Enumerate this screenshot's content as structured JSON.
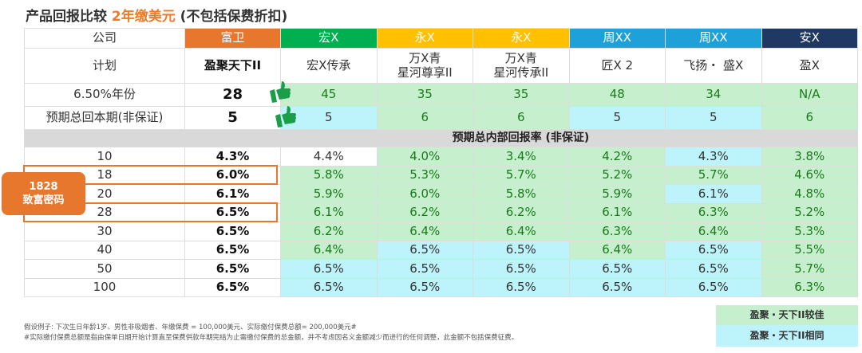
{
  "title": {
    "prefix": "产品回报比较 ",
    "highlight": "2年缴美元",
    "suffix": " (不包括保费折扣)"
  },
  "colors": {
    "orange": "#e8772e",
    "better": "#c6efce",
    "same": "#bdf3fb"
  },
  "companies": {
    "label": "公司",
    "items": [
      {
        "name": "富卫",
        "color": "#e8772e"
      },
      {
        "name": "宏X",
        "color": "#00b050"
      },
      {
        "name": "永X",
        "color": "#ffc000"
      },
      {
        "name": "永X",
        "color": "#ffc000"
      },
      {
        "name": "周XX",
        "color": "#1ea0d8"
      },
      {
        "name": "周XX",
        "color": "#1ea0d8"
      },
      {
        "name": "安X",
        "color": "#203864"
      }
    ]
  },
  "plans": {
    "label": "计划",
    "items": [
      "盈聚天下II",
      "宏X传承",
      "万X青\n星河尊享II",
      "万X青\n星河传承II",
      "匠X 2",
      "飞扬・ 盛X",
      "盈X"
    ]
  },
  "year_row": {
    "label": "6.50%年份",
    "values": [
      "28",
      "45",
      "35",
      "35",
      "48",
      "34",
      "N/A"
    ],
    "status": [
      "",
      "g",
      "g",
      "g",
      "g",
      "g",
      "g"
    ]
  },
  "payback_row": {
    "label": "预期总回本期(非保证)",
    "values": [
      "5",
      "5",
      "6",
      "6",
      "5",
      "5",
      "6"
    ],
    "status": [
      "",
      "b",
      "g",
      "g",
      "b",
      "b",
      "g"
    ]
  },
  "section": "预期总内部回报率 (非保证)",
  "irr_rows": [
    {
      "year": "10",
      "values": [
        "4.3%",
        "4.4%",
        "4.0%",
        "3.4%",
        "4.2%",
        "4.3%",
        "3.8%"
      ],
      "status": [
        "",
        "w",
        "g",
        "g",
        "g",
        "b",
        "g"
      ]
    },
    {
      "year": "18",
      "values": [
        "6.0%",
        "5.8%",
        "5.3%",
        "5.7%",
        "5.2%",
        "5.7%",
        "4.6%"
      ],
      "status": [
        "",
        "g",
        "g",
        "g",
        "g",
        "g",
        "g"
      ]
    },
    {
      "year": "20",
      "values": [
        "6.1%",
        "5.9%",
        "6.0%",
        "5.8%",
        "5.9%",
        "6.1%",
        "4.8%"
      ],
      "status": [
        "",
        "g",
        "g",
        "g",
        "g",
        "b",
        "g"
      ]
    },
    {
      "year": "28",
      "values": [
        "6.5%",
        "6.1%",
        "6.2%",
        "6.2%",
        "6.1%",
        "6.3%",
        "5.2%"
      ],
      "status": [
        "",
        "g",
        "g",
        "g",
        "g",
        "g",
        "g"
      ]
    },
    {
      "year": "30",
      "values": [
        "6.5%",
        "6.2%",
        "6.4%",
        "6.4%",
        "6.3%",
        "6.4%",
        "5.3%"
      ],
      "status": [
        "",
        "g",
        "g",
        "g",
        "g",
        "g",
        "g"
      ]
    },
    {
      "year": "40",
      "values": [
        "6.5%",
        "6.4%",
        "6.5%",
        "6.5%",
        "6.4%",
        "6.5%",
        "5.5%"
      ],
      "status": [
        "",
        "g",
        "b",
        "b",
        "g",
        "b",
        "g"
      ]
    },
    {
      "year": "50",
      "values": [
        "6.5%",
        "6.5%",
        "6.5%",
        "6.5%",
        "6.5%",
        "6.5%",
        "5.7%"
      ],
      "status": [
        "",
        "b",
        "b",
        "b",
        "b",
        "b",
        "g"
      ]
    },
    {
      "year": "100",
      "values": [
        "6.5%",
        "6.5%",
        "6.5%",
        "6.5%",
        "6.5%",
        "6.5%",
        "6.3%"
      ],
      "status": [
        "",
        "b",
        "b",
        "b",
        "b",
        "b",
        "g"
      ]
    }
  ],
  "badge": {
    "line1": "1828",
    "line2": "致富密码"
  },
  "legend": {
    "better": "盈聚・天下II较佳",
    "same": "盈聚・天下II相同"
  },
  "footnote": [
    "假设例子: 下次生日年龄1岁、男性非吸烟者、年缴保费 = 100,000美元、实际缴付保费总额= 200,000美元#",
    "#实际缴付保费总额是指由保单日期开始计算直至保费供款年期完结为止需缴付保费的总金额，并不考虑因名义金额减少而进行的任何调整，此金额不包括保费征费。"
  ]
}
